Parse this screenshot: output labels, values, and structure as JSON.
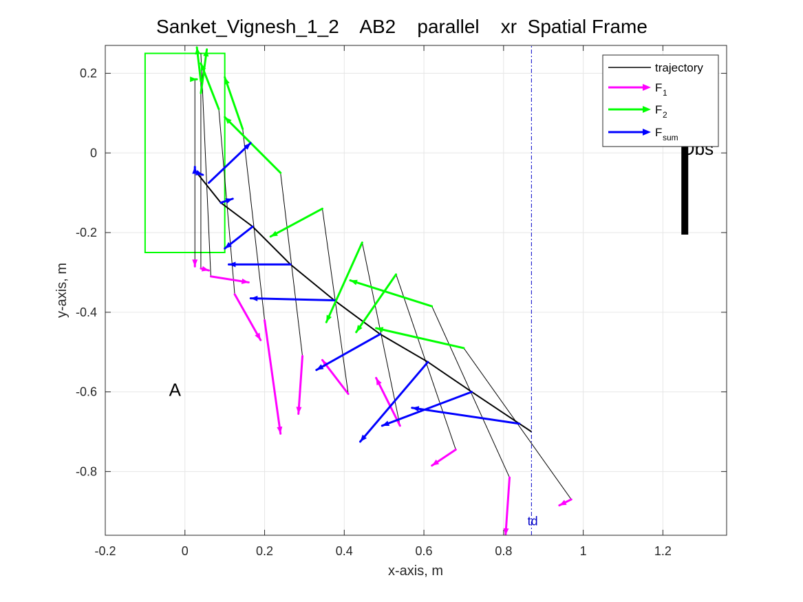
{
  "chart_data": {
    "type": "line",
    "title": "Sanket_Vignesh_1_2    AB2    parallel    xr  Spatial Frame",
    "xlabel": "x-axis, m",
    "ylabel": "y-axis, m",
    "xlim": [
      -0.2,
      1.36
    ],
    "ylim": [
      -0.96,
      0.27
    ],
    "x_ticks": [
      -0.2,
      0,
      0.2,
      0.4,
      0.6,
      0.8,
      1,
      1.2
    ],
    "x_tick_labels": [
      "-0.2",
      "0",
      "0.2",
      "0.4",
      "0.6",
      "0.8",
      "1",
      "1.2"
    ],
    "y_ticks": [
      -0.8,
      -0.6,
      -0.4,
      -0.2,
      0,
      0.2
    ],
    "y_tick_labels": [
      "-0.8",
      "-0.6",
      "-0.4",
      "-0.2",
      "0",
      "0.2"
    ],
    "grid": true,
    "legend_position": "top-right",
    "legend": [
      {
        "label": "trajectory",
        "sub": "",
        "color": "#000000",
        "arrow": false
      },
      {
        "label": "F",
        "sub": "1",
        "color": "#ff00ff",
        "arrow": true
      },
      {
        "label": "F",
        "sub": "2",
        "color": "#00ff00",
        "arrow": true
      },
      {
        "label": "F",
        "sub": "sum",
        "color": "#0000ff",
        "arrow": true
      }
    ],
    "colors": {
      "trajectory": "#000000",
      "F1": "#ff00ff",
      "F2": "#00ff00",
      "Fsum": "#0000ff",
      "td_line": "#0000c8",
      "region": "#00ff00",
      "obstacle": "#000000"
    },
    "trajectory": {
      "x": [
        0.03,
        0.09,
        0.17,
        0.265,
        0.375,
        0.49,
        0.61,
        0.72,
        0.84,
        0.87
      ],
      "y": [
        -0.05,
        -0.125,
        -0.185,
        -0.28,
        -0.37,
        -0.455,
        -0.525,
        -0.6,
        -0.68,
        -0.7
      ]
    },
    "segments": [
      {
        "x": [
          0.025,
          0.025
        ],
        "y": [
          0.185,
          -0.28
        ]
      },
      {
        "x": [
          0.04,
          0.04
        ],
        "y": [
          0.18,
          -0.29
        ]
      },
      {
        "x": [
          0.04,
          0.065
        ],
        "y": [
          0.25,
          -0.31
        ]
      },
      {
        "x": [
          0.085,
          0.125
        ],
        "y": [
          0.11,
          -0.355
        ]
      },
      {
        "x": [
          0.145,
          0.2
        ],
        "y": [
          0.06,
          -0.42
        ]
      },
      {
        "x": [
          0.24,
          0.295
        ],
        "y": [
          -0.05,
          -0.51
        ]
      },
      {
        "x": [
          0.345,
          0.41
        ],
        "y": [
          -0.14,
          -0.605
        ]
      },
      {
        "x": [
          0.445,
          0.54
        ],
        "y": [
          -0.225,
          -0.685
        ]
      },
      {
        "x": [
          0.53,
          0.68
        ],
        "y": [
          -0.305,
          -0.745
        ]
      },
      {
        "x": [
          0.62,
          0.815
        ],
        "y": [
          -0.385,
          -0.815
        ]
      },
      {
        "x": [
          0.7,
          0.97
        ],
        "y": [
          -0.49,
          -0.87
        ]
      }
    ],
    "arrows_F1": [
      {
        "x": [
          0.025,
          0.025
        ],
        "y": [
          -0.28,
          -0.285
        ]
      },
      {
        "x": [
          0.04,
          0.06
        ],
        "y": [
          -0.29,
          -0.295
        ]
      },
      {
        "x": [
          0.065,
          0.16
        ],
        "y": [
          -0.31,
          -0.325
        ]
      },
      {
        "x": [
          0.125,
          0.19
        ],
        "y": [
          -0.355,
          -0.47
        ]
      },
      {
        "x": [
          0.2,
          0.24
        ],
        "y": [
          -0.42,
          -0.705
        ]
      },
      {
        "x": [
          0.295,
          0.285
        ],
        "y": [
          -0.51,
          -0.655
        ]
      },
      {
        "x": [
          0.41,
          0.345
        ],
        "y": [
          -0.605,
          -0.52
        ]
      },
      {
        "x": [
          0.54,
          0.48
        ],
        "y": [
          -0.685,
          -0.565
        ]
      },
      {
        "x": [
          0.68,
          0.62
        ],
        "y": [
          -0.745,
          -0.785
        ]
      },
      {
        "x": [
          0.815,
          0.805
        ],
        "y": [
          -0.815,
          -0.96
        ]
      },
      {
        "x": [
          0.97,
          0.94
        ],
        "y": [
          -0.87,
          -0.885
        ]
      }
    ],
    "arrows_F2": [
      {
        "x": [
          0.025,
          0.03
        ],
        "y": [
          0.185,
          0.185
        ]
      },
      {
        "x": [
          0.04,
          0.03
        ],
        "y": [
          0.18,
          0.265
        ]
      },
      {
        "x": [
          0.04,
          0.055
        ],
        "y": [
          0.15,
          0.26
        ]
      },
      {
        "x": [
          0.085,
          0.04
        ],
        "y": [
          0.11,
          0.225
        ]
      },
      {
        "x": [
          0.145,
          0.1
        ],
        "y": [
          0.06,
          0.19
        ]
      },
      {
        "x": [
          0.24,
          0.1
        ],
        "y": [
          -0.05,
          0.09
        ]
      },
      {
        "x": [
          0.345,
          0.215
        ],
        "y": [
          -0.14,
          -0.21
        ]
      },
      {
        "x": [
          0.445,
          0.355
        ],
        "y": [
          -0.225,
          -0.425
        ]
      },
      {
        "x": [
          0.53,
          0.43
        ],
        "y": [
          -0.305,
          -0.45
        ]
      },
      {
        "x": [
          0.62,
          0.415
        ],
        "y": [
          -0.385,
          -0.32
        ]
      },
      {
        "x": [
          0.7,
          0.48
        ],
        "y": [
          -0.49,
          -0.44
        ]
      }
    ],
    "arrows_Fsum": [
      {
        "x": [
          0.025,
          0.025
        ],
        "y": [
          -0.05,
          -0.035
        ]
      },
      {
        "x": [
          0.03,
          0.045
        ],
        "y": [
          -0.05,
          -0.055
        ]
      },
      {
        "x": [
          0.06,
          0.165
        ],
        "y": [
          -0.075,
          0.025
        ]
      },
      {
        "x": [
          0.09,
          0.12
        ],
        "y": [
          -0.125,
          -0.115
        ]
      },
      {
        "x": [
          0.17,
          0.1
        ],
        "y": [
          -0.185,
          -0.24
        ]
      },
      {
        "x": [
          0.265,
          0.11
        ],
        "y": [
          -0.28,
          -0.28
        ]
      },
      {
        "x": [
          0.375,
          0.165
        ],
        "y": [
          -0.37,
          -0.365
        ]
      },
      {
        "x": [
          0.49,
          0.33
        ],
        "y": [
          -0.455,
          -0.545
        ]
      },
      {
        "x": [
          0.61,
          0.44
        ],
        "y": [
          -0.525,
          -0.725
        ]
      },
      {
        "x": [
          0.72,
          0.495
        ],
        "y": [
          -0.6,
          -0.685
        ]
      },
      {
        "x": [
          0.84,
          0.57
        ],
        "y": [
          -0.68,
          -0.64
        ]
      }
    ],
    "region_box": {
      "x": [
        -0.1,
        0.1
      ],
      "y": [
        -0.25,
        0.25
      ]
    },
    "obstacle": {
      "x": 1.255,
      "y": [
        0.02,
        -0.205
      ]
    },
    "td_line": {
      "x": 0.87,
      "y": [
        -0.96,
        0.27
      ]
    },
    "annotations": [
      {
        "text": "A",
        "x": -0.04,
        "y": -0.61
      },
      {
        "text": "Obs",
        "x": 1.245,
        "y": -0.005
      },
      {
        "text": "td",
        "x": 0.86,
        "y": -0.935
      }
    ]
  }
}
